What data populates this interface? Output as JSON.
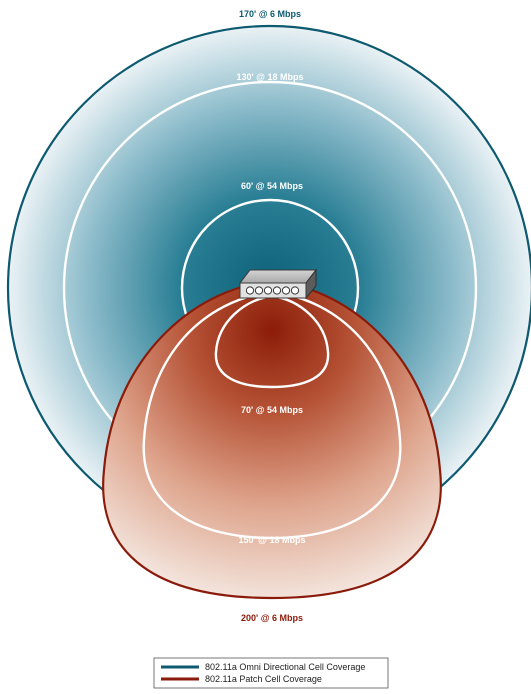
{
  "colors": {
    "omni_edge": "#0d5a70",
    "omni_core": "#0c6178",
    "omni_fade": "#eaf2f5",
    "patch_edge": "#8a1a0a",
    "patch_core": "#8c1d08",
    "patch_fade": "#f3e4dc",
    "outer_label": "#0d5a70",
    "bottom_label": "#8a1a0a",
    "inner_label": "#ffffff"
  },
  "omni": {
    "outer_label": "170' @ 6 Mbps",
    "mid_label": "130' @ 18 Mbps",
    "inner_label": "60' @ 54 Mbps"
  },
  "patch": {
    "inner_label": "70' @ 54 Mbps",
    "mid_label": "150' @ 18 Mbps",
    "outer_label": "200' @ 6 Mbps"
  },
  "device": {
    "icon": "access-point-icon"
  },
  "legend": {
    "items": [
      {
        "label": "802.11a Omni Directional Cell Coverage",
        "color": "#0d5a70"
      },
      {
        "label": "802.11a Patch Cell Coverage",
        "color": "#8a1a0a"
      }
    ]
  }
}
